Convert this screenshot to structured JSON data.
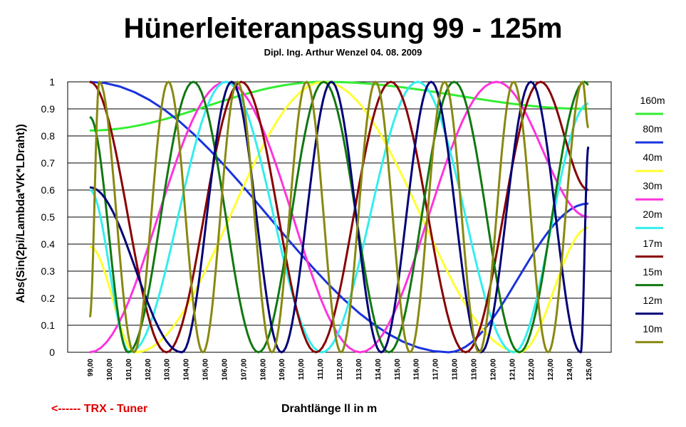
{
  "chart_data": {
    "type": "line",
    "title": "Hünerleiteranpassung 99 - 125m",
    "subtitle": "Dipl. Ing. Arthur Wenzel  04. 08. 2009",
    "xlabel": "Drahtlänge ll in m",
    "ylabel": "Abs(Sin(2pi/Lambda*VK*LDraht))",
    "note": "<------ TRX - Tuner",
    "xlim": [
      99,
      125
    ],
    "ylim": [
      0,
      1
    ],
    "x_ticks": [
      "99,00",
      "100,00",
      "101,00",
      "102,00",
      "103,00",
      "104,00",
      "105,00",
      "106,00",
      "107,00",
      "108,00",
      "109,00",
      "110,00",
      "111,00",
      "112,00",
      "113,00",
      "114,00",
      "115,00",
      "116,00",
      "117,00",
      "118,00",
      "119,00",
      "120,00",
      "121,00",
      "122,00",
      "123,00",
      "124,00",
      "125,00"
    ],
    "y_ticks": [
      "0",
      "0.1",
      "0.2",
      "0.3",
      "0.4",
      "0.5",
      "0.6",
      "0.7",
      "0.8",
      "0.9",
      "1"
    ],
    "grid": true,
    "legend_position": "right",
    "series": [
      {
        "name": "160m",
        "color": "#33ee33",
        "x": [
          99,
          111.2,
          125
        ],
        "y": [
          0.82,
          1.0,
          0.9
        ]
      },
      {
        "name": "80m",
        "color": "#1a33dd",
        "x": [
          99,
          117.7,
          125
        ],
        "y": [
          1.0,
          0.0,
          0.55
        ]
      },
      {
        "name": "40m",
        "color": "#ffff33",
        "x": [
          99,
          101.4,
          111.2,
          121.4,
          125
        ],
        "y": [
          0.39,
          0.0,
          1.0,
          0.0,
          0.46
        ]
      },
      {
        "name": "30m",
        "color": "#ff33dd",
        "x": [
          99,
          106.1,
          113.1,
          120.2,
          125
        ],
        "y": [
          0.0,
          1.0,
          0.0,
          1.0,
          0.5
        ]
      },
      {
        "name": "20m",
        "color": "#33eeee",
        "x": [
          99,
          101.1,
          106.1,
          111.1,
          116.1,
          121.1,
          125
        ],
        "y": [
          0.6,
          0.0,
          1.0,
          0.0,
          1.0,
          0.0,
          0.92
        ]
      },
      {
        "name": "17m",
        "color": "#880000",
        "x": [
          99,
          103.0,
          106.9,
          110.8,
          114.7,
          118.6,
          122.5,
          125
        ],
        "y": [
          1.0,
          0.0,
          1.0,
          0.0,
          1.0,
          0.0,
          1.0,
          0.6
        ]
      },
      {
        "name": "15m",
        "color": "#117711",
        "x": [
          99,
          101.0,
          104.4,
          107.8,
          111.2,
          114.6,
          118.0,
          121.4,
          124.8,
          125
        ],
        "y": [
          0.87,
          0.0,
          1.0,
          0.0,
          1.0,
          0.0,
          1.0,
          0.0,
          1.0,
          0.99
        ]
      },
      {
        "name": "12m",
        "color": "#000077",
        "x": [
          99,
          103.8,
          106.4,
          109.0,
          111.6,
          114.2,
          116.8,
          119.4,
          122.0,
          124.6,
          125
        ],
        "y": [
          0.61,
          0.0,
          1.0,
          0.0,
          1.0,
          0.0,
          1.0,
          0.0,
          1.0,
          0.0,
          0.76
        ]
      },
      {
        "name": "10m",
        "color": "#888811",
        "x": [
          99,
          99.5,
          101.3,
          103.1,
          104.9,
          106.7,
          108.5,
          110.3,
          112.1,
          113.9,
          115.7,
          117.5,
          119.3,
          121.1,
          122.9,
          124.7,
          125
        ],
        "y": [
          0.13,
          1.0,
          0.0,
          1.0,
          0.0,
          1.0,
          0.0,
          1.0,
          0.0,
          1.0,
          0.0,
          1.0,
          0.0,
          1.0,
          0.0,
          1.0,
          0.83
        ]
      }
    ]
  }
}
